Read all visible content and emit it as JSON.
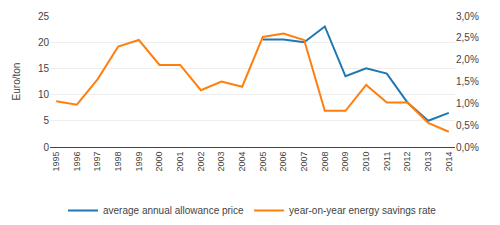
{
  "chart_data": {
    "type": "line",
    "x": [
      1995,
      1996,
      1997,
      1998,
      1999,
      2000,
      2001,
      2002,
      2003,
      2004,
      2005,
      2006,
      2007,
      2008,
      2009,
      2010,
      2011,
      2012,
      2013,
      2014
    ],
    "xlim": [
      1994.7,
      2014.3
    ],
    "xticks": [
      1995,
      1996,
      1997,
      1998,
      1999,
      2000,
      2001,
      2002,
      2003,
      2004,
      2005,
      2006,
      2007,
      2008,
      2009,
      2010,
      2011,
      2012,
      2013,
      2014
    ],
    "ylabel": "Euro/ton",
    "ylim": [
      0,
      25
    ],
    "yticks": [
      0,
      5,
      10,
      15,
      20,
      25
    ],
    "y2lim": [
      0.0,
      0.03
    ],
    "y2ticks": [
      {
        "value": 0.0,
        "label": "0,0%"
      },
      {
        "value": 0.005,
        "label": "0,5%"
      },
      {
        "value": 0.01,
        "label": "1,0%"
      },
      {
        "value": 0.015,
        "label": "1,5%"
      },
      {
        "value": 0.02,
        "label": "2,0%"
      },
      {
        "value": 0.025,
        "label": "2,5%"
      },
      {
        "value": 0.03,
        "label": "3,0%"
      }
    ],
    "grid": true,
    "legend": "bottom",
    "series": [
      {
        "name": "average annual allowance price",
        "values": [
          null,
          null,
          null,
          null,
          null,
          null,
          null,
          null,
          null,
          null,
          20.5,
          20.5,
          20.0,
          23.0,
          13.5,
          15.0,
          14.0,
          8.5,
          5.0,
          6.5
        ]
      },
      {
        "name": "year-on-year energy savings rate",
        "axis": "y2",
        "values": [
          0.0105,
          0.0097,
          0.0155,
          0.023,
          0.0245,
          0.0188,
          0.0188,
          0.013,
          0.015,
          0.0138,
          0.0252,
          0.026,
          0.0245,
          0.0083,
          0.0083,
          0.0142,
          0.0102,
          0.0102,
          0.0055,
          0.0035
        ]
      }
    ]
  }
}
